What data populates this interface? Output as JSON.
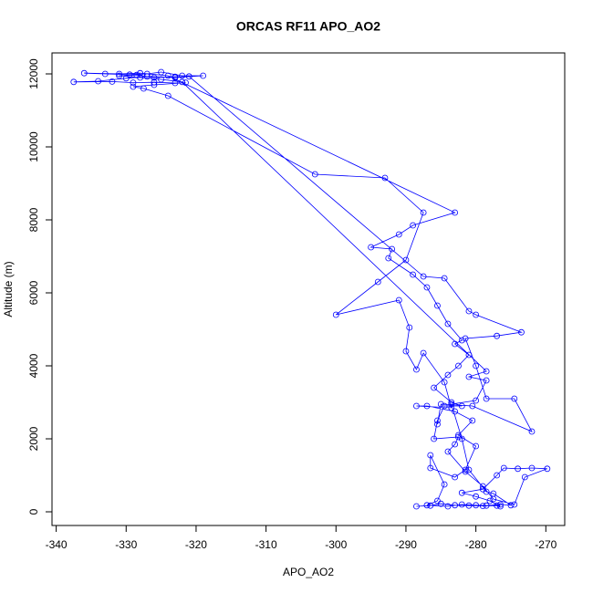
{
  "chart_data": {
    "type": "line",
    "title": "ORCAS RF11 APO_AO2",
    "x_label": "APO_AO2",
    "y_label": "Altitude (m)",
    "x": [
      -288.5,
      -286.5,
      -285,
      -283,
      -281,
      -279,
      -277,
      -276.5,
      -278,
      -280,
      -282,
      -279,
      -277,
      -276,
      -274,
      -272,
      -269.8,
      -273,
      -274.5,
      -277.5,
      -279,
      -281.5,
      -284,
      -283,
      -282.5,
      -286,
      -285.5,
      -284.5,
      -282,
      -283.5,
      -286,
      -284,
      -282.5,
      -281,
      -283,
      -282,
      -284,
      -285.5,
      -287,
      -289,
      -292.5,
      -292,
      -295,
      -291,
      -289,
      -283,
      -324,
      -328,
      -331,
      -336,
      -333,
      -329.5,
      -327,
      -325,
      -322,
      -319,
      -323,
      -327,
      -330,
      -334,
      -337.5,
      -332,
      -329,
      -326,
      -323,
      -321.5,
      -326,
      -329,
      -327.5,
      -324,
      -303,
      -293,
      -287.5,
      -290,
      -294,
      -300,
      -291,
      -289.5,
      -290,
      -288.5,
      -287.5,
      -284.5,
      -283.5,
      -288.5,
      -287,
      -283,
      -280.5,
      -282.5,
      -280,
      -281.5,
      -283,
      -286.5,
      -286.5,
      -284.5,
      -285.5,
      -287,
      -284,
      -282,
      -280,
      -278.5,
      -276.5,
      -275,
      -277.5,
      -278.5,
      -281,
      -282,
      -283.5,
      -280,
      -278.5,
      -281,
      -278.5,
      -322,
      -325,
      -328,
      -331,
      -328.5,
      -326,
      -323,
      -321,
      -287.5,
      -284.5,
      -281,
      -280,
      -273.5,
      -277,
      -281.5,
      -280,
      -278.5,
      -274.5,
      -272,
      -280.5,
      -285,
      -285.5
    ],
    "series": [
      {
        "color": "#0000ff",
        "values": [
          150,
          170,
          220,
          180,
          170,
          160,
          170,
          150,
          300,
          420,
          520,
          620,
          1000,
          1200,
          1180,
          1200,
          1180,
          950,
          200,
          350,
          700,
          1100,
          1650,
          1850,
          2050,
          2000,
          2500,
          2900,
          2900,
          3000,
          3400,
          3750,
          4000,
          4300,
          4600,
          4700,
          5150,
          5650,
          6150,
          6500,
          6950,
          7200,
          7250,
          7600,
          7850,
          8200,
          11950,
          12020,
          12000,
          12020,
          12000,
          11980,
          12000,
          12050,
          11950,
          11950,
          11900,
          11930,
          11880,
          11800,
          11780,
          11790,
          11760,
          11770,
          11750,
          11760,
          11700,
          11650,
          11600,
          11400,
          9250,
          9150,
          8200,
          6900,
          6300,
          5400,
          5800,
          5050,
          4400,
          3900,
          4350,
          3550,
          2850,
          2900,
          2900,
          2750,
          2500,
          2100,
          1800,
          1150,
          950,
          1200,
          1550,
          750,
          300,
          180,
          150,
          200,
          180,
          170,
          200,
          180,
          500,
          550,
          1150,
          2000,
          2950,
          3050,
          3600,
          3700,
          3850,
          11780,
          11850,
          11900,
          11950,
          11970,
          11900,
          11920,
          11930,
          6450,
          6400,
          5500,
          5400,
          4920,
          4820,
          4750,
          4000,
          3100,
          3100,
          2200,
          2900,
          2950,
          2400
        ]
      }
    ],
    "xlim": [
      -340.6,
      -267.3
    ],
    "ylim": [
      -375,
      12575
    ],
    "xticks": [
      -340,
      -330,
      -320,
      -310,
      -300,
      -290,
      -280,
      -270
    ],
    "yticks": [
      0,
      2000,
      4000,
      6000,
      8000,
      10000,
      12000
    ]
  }
}
